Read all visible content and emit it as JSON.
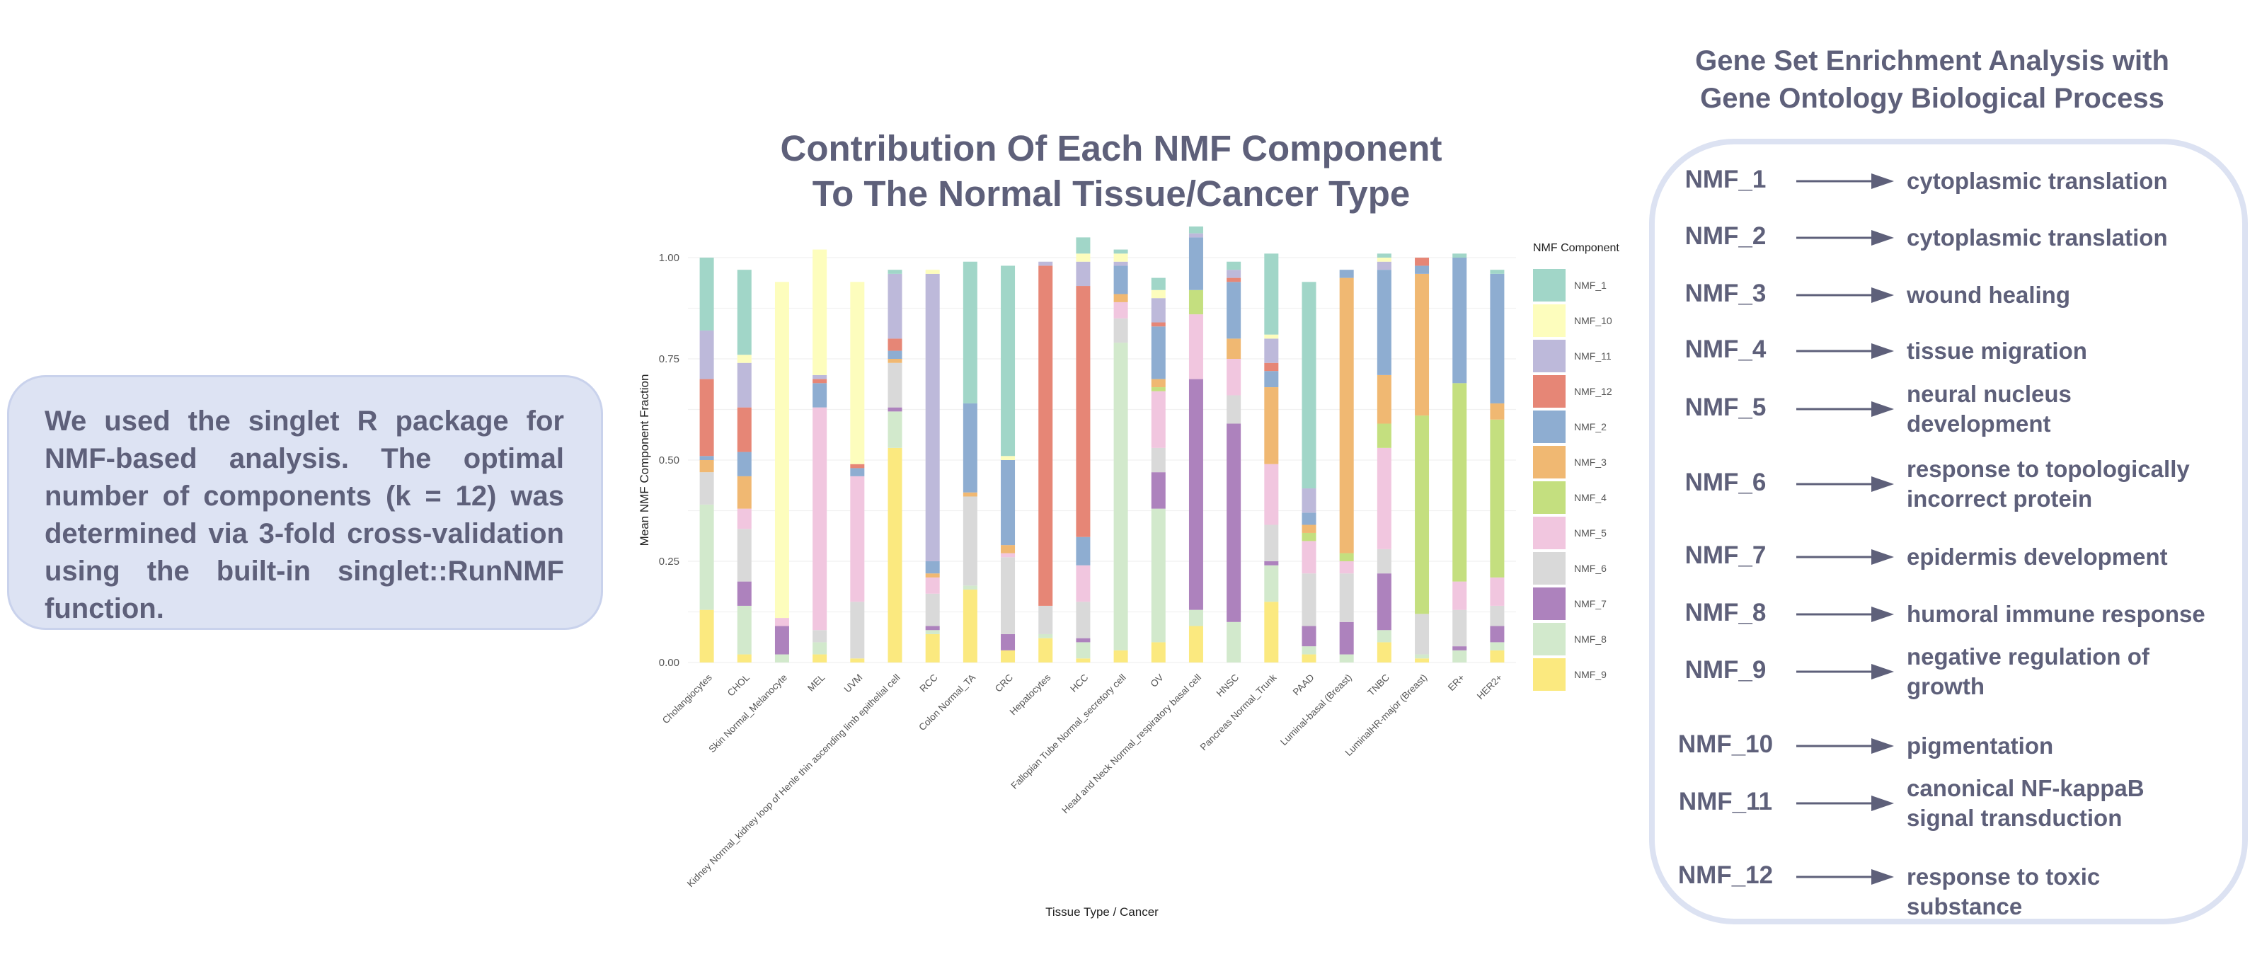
{
  "left_panel": {
    "text": "We used the singlet R package for NMF-based analysis. The optimal number of components (k = 12) was determined via 3-fold cross-validation using the built-in singlet::RunNMF function."
  },
  "chart_title": {
    "line1": "Contribution Of Each NMF Component",
    "line2": "To The Normal Tissue/Cancer Type"
  },
  "chart_data": {
    "type": "bar",
    "stacked": true,
    "xlabel": "Tissue Type / Cancer",
    "ylabel": "Mean NMF Component Fraction",
    "ylim": [
      0,
      1
    ],
    "yticks": [
      "0.00",
      "0.25",
      "0.50",
      "0.75",
      "1.00"
    ],
    "legend_title": "NMF Component",
    "legend_position": "right",
    "categories": [
      "Cholangiocytes",
      "CHOL",
      "Skin Normal_Melanocyte",
      "MEL",
      "UVM",
      "Kidney Normal_kidney loop of Henle thin ascending limb epithelial cell",
      "RCC",
      "Colon Normal_TA",
      "CRC",
      "Hepatocytes",
      "HCC",
      "Fallopian Tube Normal_secretory cell",
      "OV",
      "Head and Neck Normal_respiratory basal cell",
      "HNSC",
      "Pancreas Normal_Trunk",
      "PAAD",
      "Luminal-basal (Breast)",
      "TNBC",
      "LuminalHR-major (Breast)",
      "ER+",
      "HER2+"
    ],
    "stack_order": [
      "NMF_9",
      "NMF_8",
      "NMF_7",
      "NMF_6",
      "NMF_5",
      "NMF_4",
      "NMF_3",
      "NMF_2",
      "NMF_12",
      "NMF_11",
      "NMF_10",
      "NMF_1"
    ],
    "series": [
      {
        "name": "NMF_1",
        "color": "#a1d6c8",
        "values": [
          0.18,
          0.21,
          0.0,
          0.0,
          0.0,
          0.01,
          0.0,
          0.35,
          0.47,
          0.0,
          0.04,
          0.01,
          0.03,
          0.02,
          0.02,
          0.2,
          0.51,
          0.0,
          0.01,
          0.0,
          0.01,
          0.01
        ]
      },
      {
        "name": "NMF_10",
        "color": "#fdfdbd",
        "values": [
          0.0,
          0.02,
          0.83,
          0.31,
          0.45,
          0.0,
          0.01,
          0.0,
          0.01,
          0.0,
          0.02,
          0.02,
          0.02,
          0.0,
          0.0,
          0.01,
          0.0,
          0.0,
          0.01,
          0.0,
          0.0,
          0.0
        ]
      },
      {
        "name": "NMF_11",
        "color": "#bdb9da",
        "values": [
          0.12,
          0.11,
          0.0,
          0.01,
          0.0,
          0.16,
          0.71,
          0.0,
          0.0,
          0.01,
          0.06,
          0.01,
          0.06,
          0.01,
          0.02,
          0.06,
          0.06,
          0.0,
          0.02,
          0.0,
          0.0,
          0.0
        ]
      },
      {
        "name": "NMF_12",
        "color": "#e68676",
        "values": [
          0.19,
          0.11,
          0.0,
          0.01,
          0.01,
          0.03,
          0.0,
          0.0,
          0.0,
          0.84,
          0.62,
          0.0,
          0.01,
          0.0,
          0.01,
          0.02,
          0.0,
          0.0,
          0.0,
          0.02,
          0.0,
          0.0
        ]
      },
      {
        "name": "NMF_2",
        "color": "#8eadd1",
        "values": [
          0.01,
          0.06,
          0.0,
          0.06,
          0.02,
          0.02,
          0.03,
          0.22,
          0.21,
          0.0,
          0.07,
          0.07,
          0.13,
          0.13,
          0.14,
          0.04,
          0.03,
          0.02,
          0.26,
          0.02,
          0.31,
          0.32
        ]
      },
      {
        "name": "NMF_3",
        "color": "#f0b872",
        "values": [
          0.03,
          0.08,
          0.0,
          0.0,
          0.0,
          0.01,
          0.01,
          0.01,
          0.02,
          0.0,
          0.0,
          0.02,
          0.02,
          0.0,
          0.05,
          0.19,
          0.02,
          0.68,
          0.12,
          0.35,
          0.0,
          0.04
        ]
      },
      {
        "name": "NMF_4",
        "color": "#c4df7f",
        "values": [
          0.0,
          0.0,
          0.0,
          0.0,
          0.0,
          0.0,
          0.0,
          0.0,
          0.0,
          0.0,
          0.0,
          0.0,
          0.01,
          0.06,
          0.0,
          0.0,
          0.02,
          0.02,
          0.06,
          0.49,
          0.49,
          0.39
        ]
      },
      {
        "name": "NMF_5",
        "color": "#f1c6df",
        "values": [
          0.0,
          0.05,
          0.02,
          0.55,
          0.31,
          0.0,
          0.04,
          0.0,
          0.01,
          0.0,
          0.09,
          0.04,
          0.14,
          0.16,
          0.09,
          0.15,
          0.08,
          0.03,
          0.25,
          0.0,
          0.07,
          0.07
        ]
      },
      {
        "name": "NMF_6",
        "color": "#d9d9d9",
        "values": [
          0.08,
          0.13,
          0.0,
          0.03,
          0.14,
          0.11,
          0.08,
          0.22,
          0.19,
          0.07,
          0.09,
          0.06,
          0.06,
          0.0,
          0.07,
          0.09,
          0.13,
          0.12,
          0.06,
          0.1,
          0.09,
          0.05
        ]
      },
      {
        "name": "NMF_7",
        "color": "#ad82bd",
        "values": [
          0.0,
          0.06,
          0.07,
          0.0,
          0.0,
          0.01,
          0.01,
          0.0,
          0.04,
          0.0,
          0.01,
          0.0,
          0.09,
          0.57,
          0.49,
          0.01,
          0.05,
          0.08,
          0.14,
          0.0,
          0.01,
          0.04
        ]
      },
      {
        "name": "NMF_8",
        "color": "#d2e9cc",
        "values": [
          0.26,
          0.12,
          0.02,
          0.03,
          0.0,
          0.09,
          0.01,
          0.01,
          0.0,
          0.01,
          0.04,
          0.76,
          0.33,
          0.04,
          0.1,
          0.09,
          0.02,
          0.02,
          0.03,
          0.01,
          0.03,
          0.02
        ]
      },
      {
        "name": "NMF_9",
        "color": "#fbe97f",
        "values": [
          0.13,
          0.02,
          0.0,
          0.02,
          0.01,
          0.53,
          0.07,
          0.18,
          0.03,
          0.06,
          0.01,
          0.03,
          0.05,
          0.09,
          0.0,
          0.15,
          0.02,
          0.0,
          0.05,
          0.01,
          0.0,
          0.03
        ]
      }
    ]
  },
  "gsea": {
    "title_line1": "Gene Set Enrichment Analysis with",
    "title_line2": "Gene Ontology Biological Process",
    "items": [
      {
        "component": "NMF_1",
        "lines": [
          "cytoplasmic translation"
        ]
      },
      {
        "component": "NMF_2",
        "lines": [
          "cytoplasmic translation"
        ]
      },
      {
        "component": "NMF_3",
        "lines": [
          "wound healing"
        ]
      },
      {
        "component": "NMF_4",
        "lines": [
          "tissue migration"
        ]
      },
      {
        "component": "NMF_5",
        "lines": [
          "neural nucleus",
          "development"
        ]
      },
      {
        "component": "NMF_6",
        "lines": [
          "response to topologically",
          "incorrect protein"
        ]
      },
      {
        "component": "NMF_7",
        "lines": [
          "epidermis development"
        ]
      },
      {
        "component": "NMF_8",
        "lines": [
          "humoral immune response"
        ]
      },
      {
        "component": "NMF_9",
        "lines": [
          "negative regulation of",
          "growth"
        ]
      },
      {
        "component": "NMF_10",
        "lines": [
          "pigmentation"
        ]
      },
      {
        "component": "NMF_11",
        "lines": [
          "canonical NF-kappaB",
          "signal transduction"
        ]
      },
      {
        "component": "NMF_12",
        "lines": [
          "response to toxic substance"
        ]
      }
    ]
  }
}
